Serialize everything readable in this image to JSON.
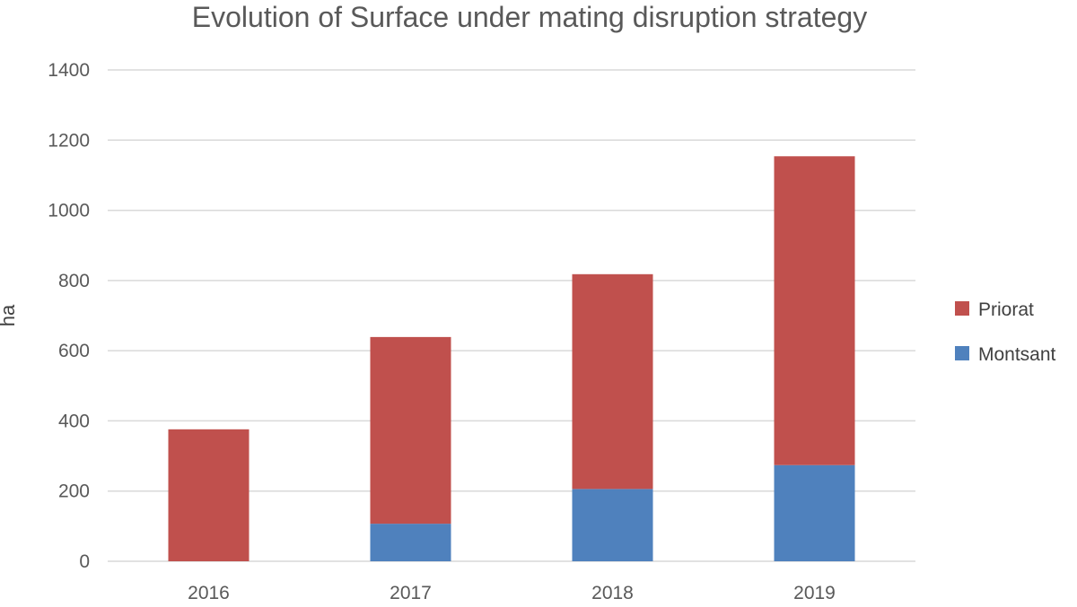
{
  "colors": {
    "background": "#ffffff",
    "priorat": "#c0504d",
    "montsant": "#4f81bd",
    "grid": "#d9d9d9",
    "text": "#595959"
  },
  "chart_data": {
    "type": "bar",
    "stacked": true,
    "title": "Evolution of Surface under mating disruption strategy",
    "xlabel": "",
    "ylabel": "ha",
    "categories": [
      "2016",
      "2017",
      "2018",
      "2019"
    ],
    "ylim": [
      0,
      1400
    ],
    "yticks": [
      0,
      200,
      400,
      600,
      800,
      1000,
      1200,
      1400
    ],
    "grid": true,
    "legend_position": "right",
    "series": [
      {
        "name": "Montsant",
        "color": "#4f81bd",
        "values": [
          0,
          107,
          206,
          274
        ]
      },
      {
        "name": "Priorat",
        "color": "#c0504d",
        "values": [
          376,
          532,
          612,
          880
        ]
      }
    ],
    "legend_order": [
      "Priorat",
      "Montsant"
    ]
  }
}
